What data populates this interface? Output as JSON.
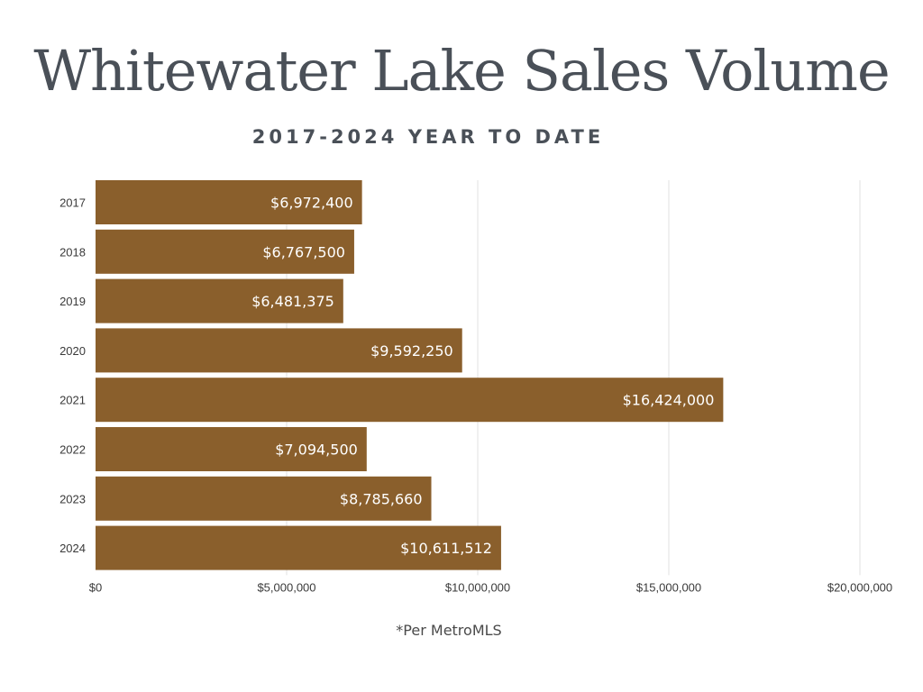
{
  "chart_data": {
    "type": "bar",
    "orientation": "horizontal",
    "title": "Whitewater Lake Sales Volume",
    "subtitle": "2017-2024 YEAR TO DATE",
    "categories": [
      "2017",
      "2018",
      "2019",
      "2020",
      "2021",
      "2022",
      "2023",
      "2024"
    ],
    "values": [
      6972400,
      6767500,
      6481375,
      9592250,
      16424000,
      7094500,
      8785660,
      10611512
    ],
    "data_labels": [
      "$6,972,400",
      "$6,767,500",
      "$6,481,375",
      "$9,592,250",
      "$16,424,000",
      "$7,094,500",
      "$8,785,660",
      "$10,611,512"
    ],
    "xlim": [
      0,
      20000000
    ],
    "x_ticks": [
      0,
      5000000,
      10000000,
      15000000,
      20000000
    ],
    "x_tick_labels": [
      "$0",
      "$5,000,000",
      "$10,000,000",
      "$15,000,000",
      "$20,000,000"
    ],
    "grid": "vertical",
    "legend": "none",
    "bar_color": "#8a5f2c",
    "grid_color": "#e2e2e2",
    "footnote": "*Per MetroMLS"
  }
}
